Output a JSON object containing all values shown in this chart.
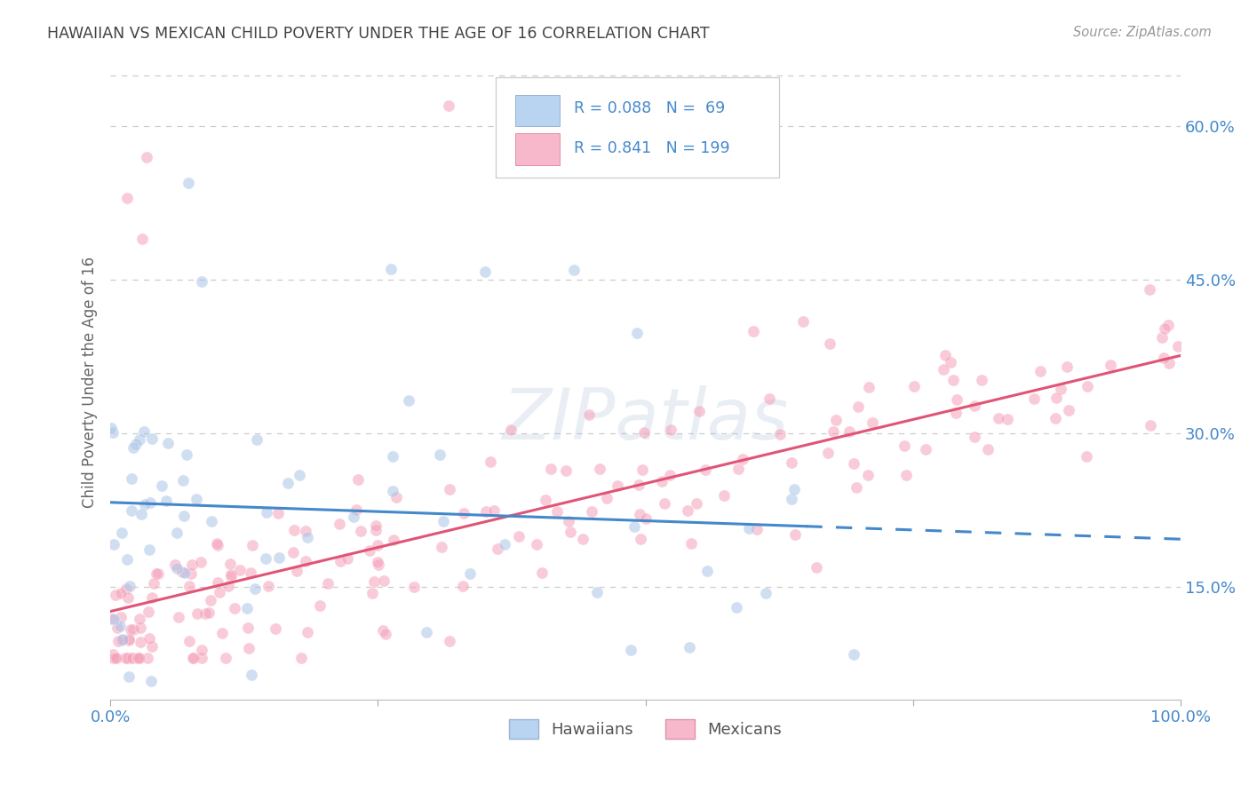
{
  "title": "HAWAIIAN VS MEXICAN CHILD POVERTY UNDER THE AGE OF 16 CORRELATION CHART",
  "source": "Source: ZipAtlas.com",
  "ylabel": "Child Poverty Under the Age of 16",
  "watermark": "ZIPatlas",
  "hawaiian_R": 0.088,
  "hawaiian_N": 69,
  "mexican_R": 0.841,
  "mexican_N": 199,
  "hawaiian_dot_color": "#aac4e8",
  "mexican_dot_color": "#f5a0b8",
  "hawaiian_line_color": "#4488cc",
  "mexican_line_color": "#e05575",
  "tick_label_color": "#4488cc",
  "title_color": "#444444",
  "legend_rect_h": "#b8d4f0",
  "legend_rect_m": "#f8b8cc",
  "bg_color": "#ffffff",
  "grid_color": "#cccccc",
  "ymin": 0.04,
  "ymax": 0.66,
  "yticks": [
    0.15,
    0.3,
    0.45,
    0.6
  ],
  "ytick_labels": [
    "15.0%",
    "30.0%",
    "45.0%",
    "60.0%"
  ],
  "marker_size": 90,
  "alpha": 0.55,
  "seed": 7
}
